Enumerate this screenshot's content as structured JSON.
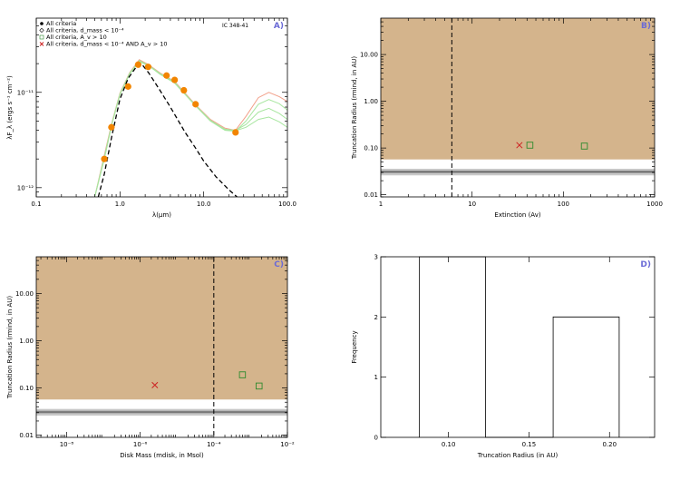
{
  "colors": {
    "tan": "#d4b48c",
    "orange": "#f28500",
    "green": "#2e8b2e",
    "lightgreen": "#a8e6a0",
    "fitred": "#f2a08a",
    "red": "#cc2222",
    "grey": "#888888",
    "letter": "#6b6bd6"
  },
  "chart_data": [
    {
      "panel": "A",
      "type": "line",
      "letter": "A)",
      "annotation": "IC 348-41",
      "xlabel": "λ(μm)",
      "ylabel": "λF_λ (ergs s⁻¹ cm⁻²)",
      "xscale": "log",
      "yscale": "log",
      "xlim": [
        0.1,
        100
      ],
      "ylim": [
        8e-13,
        6e-11
      ],
      "xticks": [
        0.1,
        1,
        10,
        100
      ],
      "xtick_labels": [
        "0.1",
        "1.0",
        "10.0",
        "100.0"
      ],
      "yticks": [
        1e-12,
        1e-11
      ],
      "ytick_labels": [
        "10⁻¹²",
        "10⁻¹¹"
      ],
      "legend": [
        {
          "marker": "filled-circle",
          "text": "All criteria"
        },
        {
          "marker": "open-diamond",
          "text": "All criteria, d_mass < 10⁻⁴"
        },
        {
          "marker": "open-square",
          "text": "All criteria, A_v > 10"
        },
        {
          "marker": "x",
          "text": "All criteria, d_mass < 10⁻⁴ AND A_v > 10"
        }
      ],
      "observed_points": {
        "x": [
          0.65,
          0.79,
          1.25,
          1.65,
          2.17,
          3.6,
          4.5,
          5.8,
          8.0,
          24.0
        ],
        "y": [
          2e-12,
          4.3e-12,
          1.15e-11,
          1.95e-11,
          1.85e-11,
          1.5e-11,
          1.35e-11,
          1.05e-11,
          7.5e-12,
          3.8e-12
        ]
      },
      "photosphere": {
        "x": [
          0.55,
          0.65,
          0.8,
          1.0,
          1.25,
          1.6,
          1.8,
          2.2,
          3.0,
          4.0,
          5.0,
          6.0,
          8.0,
          10.0,
          14.0,
          20.0,
          25.0
        ],
        "y": [
          8e-13,
          1.4e-12,
          3.5e-12,
          8.5e-12,
          1.4e-11,
          1.9e-11,
          2e-11,
          1.6e-11,
          1.05e-11,
          7e-12,
          5e-12,
          3.8e-12,
          2.6e-12,
          1.9e-12,
          1.3e-12,
          9.5e-13,
          8e-13
        ]
      },
      "model_fits": [
        {
          "x": [
            0.5,
            0.65,
            0.8,
            1.0,
            1.3,
            1.7,
            2.2,
            3.0,
            4.5,
            6.0,
            8.0,
            12.0,
            18.0,
            24.0,
            32.0,
            45.0,
            60.0,
            80.0,
            100.0
          ],
          "y": [
            8e-13,
            2.2e-12,
            4.8e-12,
            9.8e-12,
            1.6e-11,
            2.2e-11,
            1.95e-11,
            1.6e-11,
            1.3e-11,
            9.8e-12,
            7.4e-12,
            5.2e-12,
            4.2e-12,
            4e-12,
            5.6e-12,
            8.8e-12,
            1e-11,
            9e-12,
            8e-12
          ]
        },
        {
          "x": [
            0.5,
            0.65,
            0.8,
            1.0,
            1.3,
            1.7,
            2.2,
            3.0,
            4.5,
            6.0,
            8.0,
            12.0,
            18.0,
            24.0,
            32.0,
            45.0,
            60.0,
            80.0,
            100.0
          ],
          "y": [
            8e-13,
            2e-12,
            4.6e-12,
            9.5e-12,
            1.55e-11,
            2.1e-11,
            1.9e-11,
            1.55e-11,
            1.25e-11,
            9.5e-12,
            7.2e-12,
            5e-12,
            4e-12,
            3.9e-12,
            5e-12,
            7.5e-12,
            8.4e-12,
            7.6e-12,
            6.5e-12
          ]
        },
        {
          "x": [
            0.5,
            0.65,
            0.8,
            1.0,
            1.3,
            1.7,
            2.2,
            3.0,
            4.5,
            6.0,
            8.0,
            12.0,
            18.0,
            24.0,
            32.0,
            45.0,
            60.0,
            80.0,
            100.0
          ],
          "y": [
            8e-13,
            2.1e-12,
            4.7e-12,
            9.6e-12,
            1.58e-11,
            2.15e-11,
            1.92e-11,
            1.58e-11,
            1.28e-11,
            9.6e-12,
            7.3e-12,
            5.1e-12,
            4.1e-12,
            4e-12,
            4.6e-12,
            6.2e-12,
            6.8e-12,
            6e-12,
            5.2e-12
          ]
        },
        {
          "x": [
            0.5,
            0.65,
            0.8,
            1.0,
            1.3,
            1.7,
            2.2,
            3.0,
            4.5,
            6.0,
            8.0,
            12.0,
            18.0,
            24.0,
            32.0,
            45.0,
            60.0,
            80.0,
            100.0
          ],
          "y": [
            8e-13,
            2.05e-12,
            4.65e-12,
            9.55e-12,
            1.57e-11,
            2.12e-11,
            1.91e-11,
            1.57e-11,
            1.27e-11,
            9.55e-12,
            7.25e-12,
            5.05e-12,
            4.05e-12,
            3.95e-12,
            4.3e-12,
            5.2e-12,
            5.5e-12,
            4.9e-12,
            4.3e-12
          ]
        }
      ]
    },
    {
      "panel": "B",
      "type": "scatter",
      "letter": "B)",
      "xlabel": "Extinction (Av)",
      "ylabel": "Truncation Radius (rmind, in AU)",
      "xscale": "log",
      "yscale": "log",
      "xlim": [
        1,
        1000
      ],
      "ylim": [
        0.009,
        60
      ],
      "xticks": [
        1,
        10,
        100,
        1000
      ],
      "xtick_labels": [
        "1",
        "10",
        "100",
        "1000"
      ],
      "yticks": [
        0.01,
        0.1,
        1,
        10
      ],
      "ytick_labels": [
        "0.01",
        "0.10",
        "1.00",
        "10.00"
      ],
      "allowed_region_ymin": 0.057,
      "band": {
        "center": 0.031,
        "inner": [
          0.029,
          0.033
        ],
        "outer": [
          0.026,
          0.036
        ]
      },
      "vline_x": 6,
      "points_x_marker": {
        "x": [
          33
        ],
        "y": [
          0.115
        ]
      },
      "points_square": {
        "x": [
          43,
          170
        ],
        "y": [
          0.115,
          0.11
        ]
      }
    },
    {
      "panel": "C",
      "type": "scatter",
      "letter": "C)",
      "xlabel": "Disk Mass (mdisk, in Msol)",
      "ylabel": "Truncation Radius (rmind, in AU)",
      "xscale": "log",
      "yscale": "log",
      "xlim": [
        1.5e-09,
        0.01
      ],
      "ylim": [
        0.009,
        60
      ],
      "xticks": [
        1e-08,
        1e-06,
        0.0001,
        0.01
      ],
      "xtick_labels": [
        "10⁻⁸",
        "10⁻⁶",
        "10⁻⁴",
        "10⁻²"
      ],
      "yticks": [
        0.01,
        0.1,
        1,
        10
      ],
      "ytick_labels": [
        "0.01",
        "0.10",
        "1.00",
        "10.00"
      ],
      "allowed_region_ymin": 0.057,
      "band": {
        "center": 0.031,
        "inner": [
          0.029,
          0.033
        ],
        "outer": [
          0.026,
          0.036
        ]
      },
      "vline_x": 0.0001,
      "points_x_marker": {
        "x": [
          2.5e-06
        ],
        "y": [
          0.115
        ]
      },
      "points_square": {
        "x": [
          0.0006,
          0.0017
        ],
        "y": [
          0.19,
          0.11
        ]
      }
    },
    {
      "panel": "D",
      "type": "bar",
      "letter": "D)",
      "xlabel": "Truncation Radius (in AU)",
      "ylabel": "Frequency",
      "xlim": [
        0.058,
        0.228
      ],
      "ylim": [
        0,
        3
      ],
      "xticks": [
        0.1,
        0.15,
        0.2
      ],
      "xtick_labels": [
        "0.10",
        "0.15",
        "0.20"
      ],
      "yticks": [
        0,
        1,
        2,
        3
      ],
      "ytick_labels": [
        "0",
        "1",
        "2",
        "3"
      ],
      "bins": [
        {
          "x0": 0.082,
          "x1": 0.123,
          "count": 3
        },
        {
          "x0": 0.123,
          "x1": 0.165,
          "count": 0
        },
        {
          "x0": 0.165,
          "x1": 0.206,
          "count": 2
        }
      ]
    }
  ]
}
